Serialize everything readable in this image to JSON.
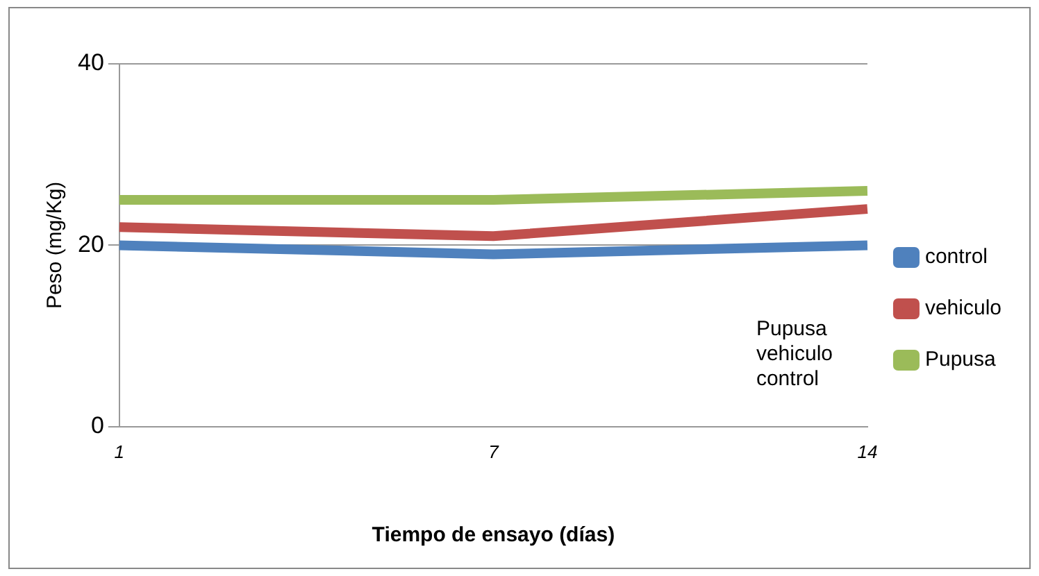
{
  "chart_data": {
    "type": "line",
    "xlabel": "Tiempo de ensayo (días)",
    "ylabel": "Peso (mg/Kg)",
    "categories": [
      "1",
      "7",
      "14"
    ],
    "series": [
      {
        "name": "control",
        "color": "#4f81bd",
        "values": [
          20,
          19,
          20
        ]
      },
      {
        "name": "vehiculo",
        "color": "#c0504d",
        "values": [
          22,
          21,
          24
        ]
      },
      {
        "name": "Pupusa",
        "color": "#9bbb59",
        "values": [
          25,
          25,
          26
        ]
      }
    ],
    "ylim": [
      0,
      40
    ],
    "yticks": [
      0,
      20,
      40
    ],
    "grid": "y",
    "legend": "right",
    "marker": "none",
    "line_style": "solid",
    "annotations": [
      "Pupusa",
      "vehiculo",
      "control"
    ]
  }
}
